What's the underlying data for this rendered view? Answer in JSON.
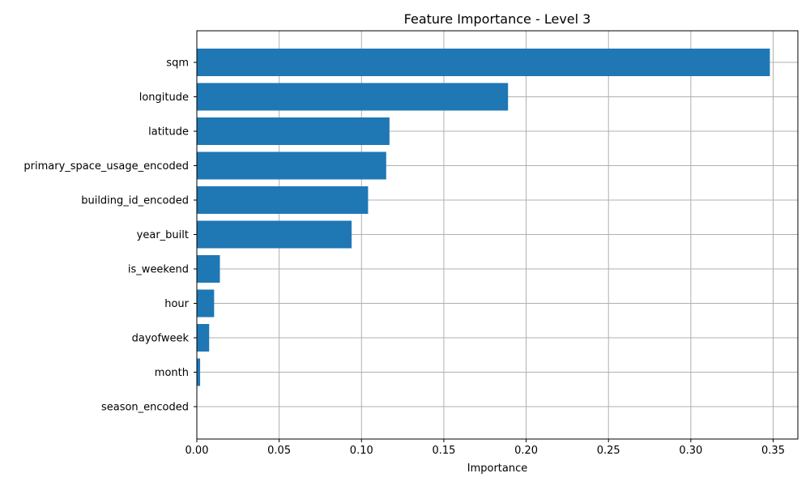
{
  "chart_data": {
    "type": "bar",
    "orientation": "horizontal",
    "title": "Feature Importance - Level 3",
    "xlabel": "Importance",
    "ylabel": "",
    "xlim": [
      0.0,
      0.365
    ],
    "x_ticks": [
      "0.00",
      "0.05",
      "0.10",
      "0.15",
      "0.20",
      "0.25",
      "0.30",
      "0.35"
    ],
    "x_tick_values": [
      0.0,
      0.05,
      0.1,
      0.15,
      0.2,
      0.25,
      0.3,
      0.35
    ],
    "grid": true,
    "bar_color": "#1f77b4",
    "categories": [
      "sqm",
      "longitude",
      "latitude",
      "primary_space_usage_encoded",
      "building_id_encoded",
      "year_built",
      "is_weekend",
      "hour",
      "dayofweek",
      "month",
      "season_encoded"
    ],
    "values": [
      0.348,
      0.189,
      0.117,
      0.115,
      0.104,
      0.094,
      0.014,
      0.0105,
      0.0075,
      0.002,
      0.0
    ]
  }
}
